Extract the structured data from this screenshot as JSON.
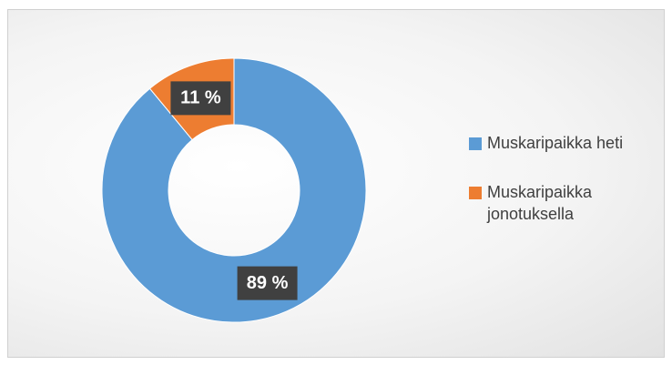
{
  "chart_data": {
    "type": "donut",
    "categories": [
      "Muskaripaikka heti",
      "Muskaripaikka jonotuksella"
    ],
    "values": [
      89,
      11
    ],
    "value_labels": [
      "89 %",
      "11 %"
    ],
    "colors": [
      "#5b9bd5",
      "#ed7d31"
    ],
    "legend": "right"
  }
}
